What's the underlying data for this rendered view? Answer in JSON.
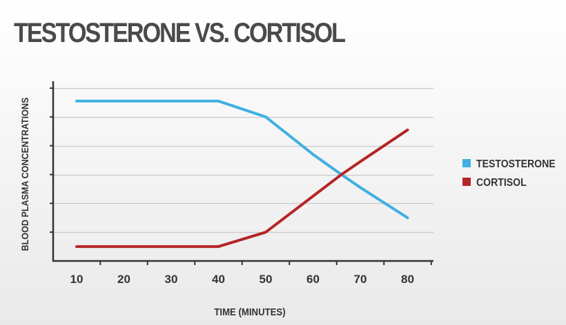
{
  "chart_data": {
    "type": "line",
    "title": "TESTOSTERONE VS. CORTISOL",
    "xlabel": "TIME (MINUTES)",
    "ylabel": "BLOOD PLASMA CONCENTRATIONS",
    "x": [
      10,
      20,
      30,
      40,
      50,
      60,
      70,
      80
    ],
    "xticks": [
      "10",
      "20",
      "30",
      "40",
      "50",
      "60",
      "70",
      "80"
    ],
    "ylim": [
      0,
      6
    ],
    "grid": true,
    "legend_position": "right",
    "series": [
      {
        "name": "TESTOSTERONE",
        "color": "#3fb0e0",
        "points": [
          [
            10,
            5.55
          ],
          [
            40,
            5.55
          ],
          [
            50,
            5.0
          ],
          [
            60,
            3.7
          ],
          [
            66,
            3.0
          ],
          [
            70,
            2.55
          ],
          [
            80,
            1.5
          ]
        ]
      },
      {
        "name": "CORTISOL",
        "color": "#b52525",
        "points": [
          [
            10,
            0.5
          ],
          [
            40,
            0.5
          ],
          [
            50,
            1.0
          ],
          [
            60,
            2.25
          ],
          [
            66,
            3.0
          ],
          [
            70,
            3.45
          ],
          [
            80,
            4.55
          ]
        ]
      }
    ]
  }
}
